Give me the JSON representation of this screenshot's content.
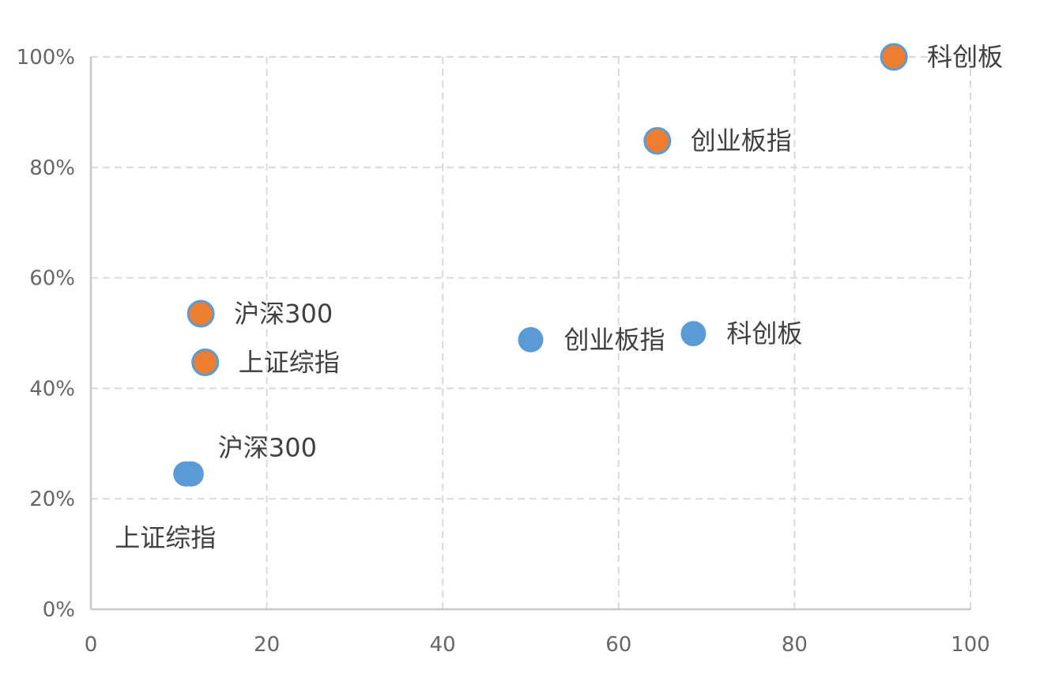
{
  "chart_data": {
    "type": "scatter",
    "title": "",
    "xlabel": "",
    "ylabel": "",
    "xlim": [
      0,
      100
    ],
    "ylim": [
      0,
      1
    ],
    "x_ticks": [
      0,
      20,
      40,
      60,
      80,
      100
    ],
    "x_tick_labels": [
      "0",
      "20",
      "40",
      "60",
      "80",
      "100"
    ],
    "y_ticks": [
      0,
      0.2,
      0.4,
      0.6,
      0.8,
      1.0
    ],
    "y_tick_labels": [
      "0%",
      "20%",
      "40%",
      "60%",
      "80%",
      "100%"
    ],
    "grid": true,
    "legend": false,
    "series": [
      {
        "color": "#5b9bd5",
        "points": [
          {
            "x": 10.8,
            "y": 0.245,
            "label": "上证综指",
            "label_pos": "below-left"
          },
          {
            "x": 11.4,
            "y": 0.245,
            "label": "沪深300",
            "label_pos": "above-right"
          },
          {
            "x": 50.0,
            "y": 0.488,
            "label": "创业板指",
            "label_pos": "right"
          },
          {
            "x": 68.5,
            "y": 0.499,
            "label": "科创板",
            "label_pos": "right"
          }
        ]
      },
      {
        "color": "#ed7d31",
        "edge_color": "#5b9bd5",
        "points": [
          {
            "x": 12.5,
            "y": 0.535,
            "label": "沪深300",
            "label_pos": "right"
          },
          {
            "x": 13.0,
            "y": 0.447,
            "label": "上证综指",
            "label_pos": "right"
          },
          {
            "x": 64.4,
            "y": 0.848,
            "label": "创业板指",
            "label_pos": "right"
          },
          {
            "x": 91.3,
            "y": 1.0,
            "label": "科创板",
            "label_pos": "right"
          }
        ]
      }
    ]
  }
}
